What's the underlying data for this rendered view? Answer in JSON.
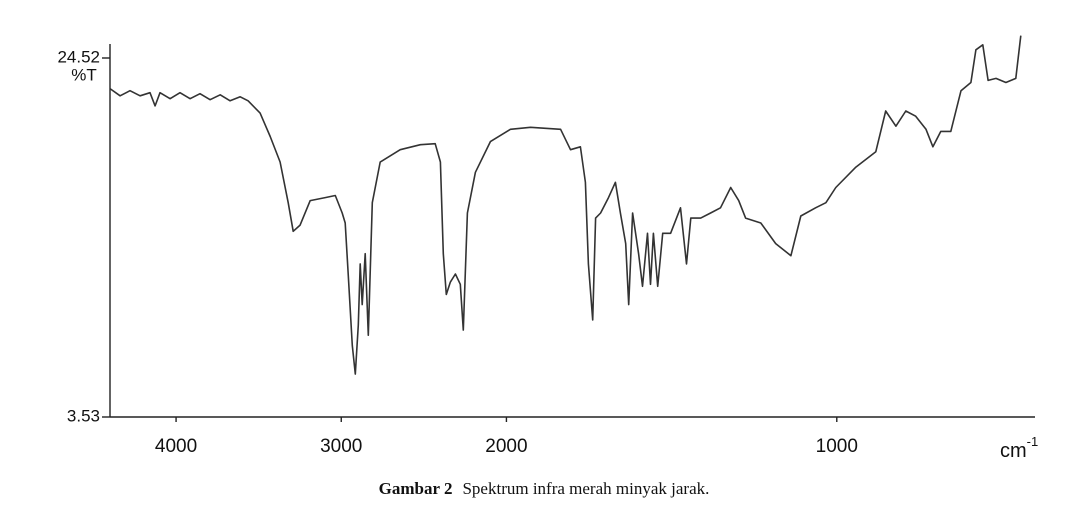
{
  "chart_data": {
    "type": "line",
    "y_label": "%T",
    "x_label": "cm",
    "x_label_superscript": "-1",
    "caption_label": "Gambar 2",
    "caption_text": "Spektrum infra merah minyak jarak.",
    "xlim": [
      4400,
      400
    ],
    "x_expansion": {
      "below": 2000,
      "factor": 2
    },
    "xticks": [
      4000,
      3000,
      2000,
      1000
    ],
    "ylim": [
      3.53,
      24.52
    ],
    "yticks": [
      3.53,
      24.52
    ],
    "grid": false,
    "series": [
      {
        "color": "#333333",
        "x": [
          4400,
          4339,
          4279,
          4218,
          4158,
          4127,
          4097,
          4036,
          3976,
          3915,
          3855,
          3794,
          3733,
          3673,
          3612,
          3564,
          3491,
          3430,
          3370,
          3321,
          3291,
          3249,
          3188,
          3097,
          3036,
          2994,
          2976,
          2958,
          2933,
          2915,
          2897,
          2885,
          2873,
          2855,
          2836,
          2812,
          2764,
          2643,
          2521,
          2431,
          2400,
          2382,
          2364,
          2340,
          2309,
          2279,
          2261,
          2236,
          2188,
          2097,
          1988,
          1927,
          1836,
          1806,
          1776,
          1761,
          1752,
          1739,
          1730,
          1715,
          1691,
          1670,
          1655,
          1639,
          1630,
          1618,
          1600,
          1588,
          1573,
          1564,
          1555,
          1542,
          1527,
          1503,
          1473,
          1455,
          1442,
          1412,
          1382,
          1352,
          1321,
          1297,
          1276,
          1230,
          1185,
          1139,
          1109,
          1064,
          1033,
          1003,
          942,
          882,
          852,
          821,
          791,
          761,
          730,
          709,
          685,
          655,
          624,
          594,
          579,
          558,
          542,
          518,
          488,
          458,
          443
        ],
        "values": [
          22.73,
          22.31,
          22.61,
          22.31,
          22.49,
          21.72,
          22.49,
          22.14,
          22.49,
          22.14,
          22.43,
          22.08,
          22.37,
          22.02,
          22.25,
          22.02,
          21.3,
          19.93,
          18.44,
          16.06,
          14.39,
          14.75,
          16.18,
          16.36,
          16.48,
          15.46,
          14.87,
          11.89,
          7.71,
          6.04,
          8.91,
          12.48,
          10.1,
          13.08,
          8.31,
          16.06,
          18.44,
          19.16,
          19.45,
          19.51,
          18.44,
          13.08,
          10.69,
          11.41,
          11.89,
          11.29,
          8.61,
          15.46,
          17.84,
          19.63,
          20.35,
          20.47,
          20.35,
          19.16,
          19.33,
          17.25,
          12.48,
          9.2,
          15.16,
          15.46,
          16.36,
          17.25,
          15.46,
          13.67,
          10.1,
          15.46,
          13.08,
          11.17,
          14.27,
          11.29,
          14.27,
          11.17,
          14.27,
          14.27,
          15.76,
          12.48,
          15.16,
          15.16,
          15.46,
          15.76,
          16.95,
          16.18,
          15.16,
          14.87,
          13.67,
          12.96,
          15.28,
          15.76,
          16.06,
          16.95,
          18.14,
          19.04,
          21.42,
          20.53,
          21.42,
          21.12,
          20.35,
          19.33,
          20.23,
          20.23,
          22.61,
          23.09,
          25.0,
          25.29,
          23.21,
          23.33,
          23.09,
          23.33,
          25.83
        ]
      }
    ]
  }
}
